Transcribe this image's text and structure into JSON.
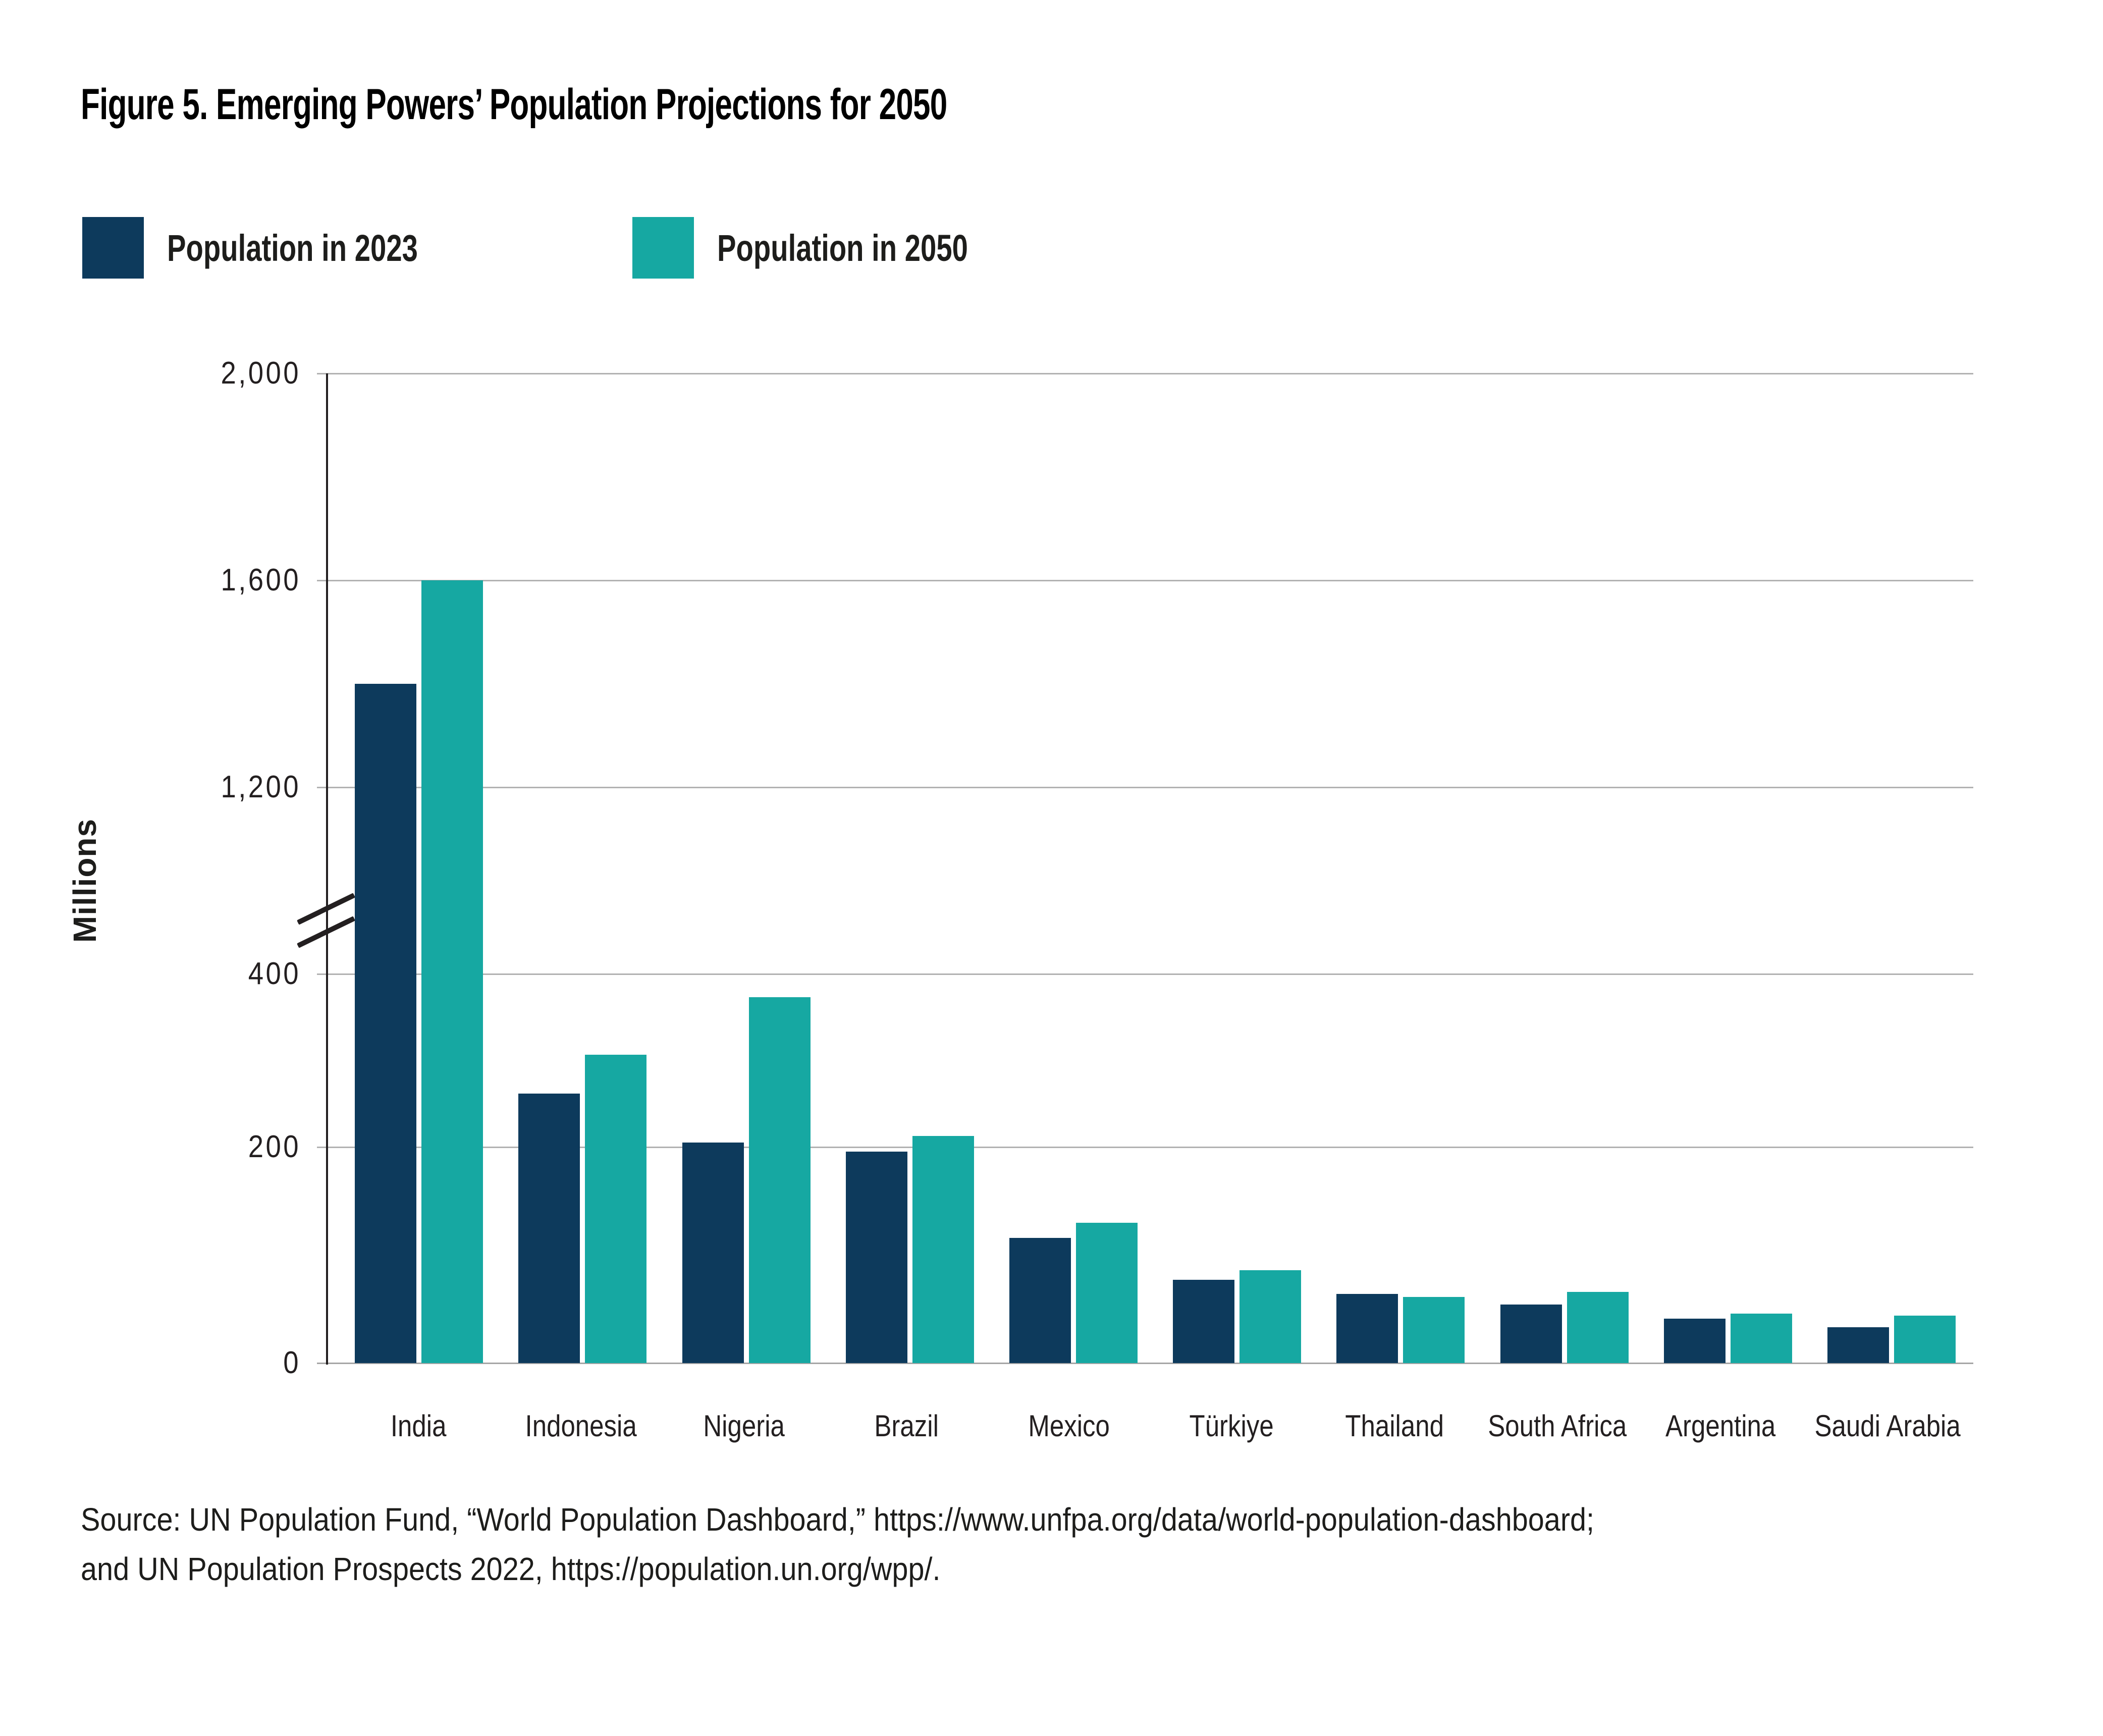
{
  "title": "Figure 5. Emerging Powers’ Population Projections for 2050",
  "legend": {
    "items": [
      {
        "label": "Population in 2023",
        "color": "#0d3a5c"
      },
      {
        "label": "Population in 2050",
        "color": "#16a8a2"
      }
    ]
  },
  "y_axis": {
    "label": "Millions",
    "has_break": true,
    "break_between": [
      400,
      1200
    ]
  },
  "chart_data": {
    "type": "bar",
    "title": "Figure 5. Emerging Powers’ Population Projections for 2050",
    "xlabel": "",
    "ylabel": "Millions",
    "grid": "horizontal",
    "legend_position": "top-left",
    "axis_break": {
      "lower_range": [
        0,
        400
      ],
      "upper_range": [
        1200,
        2000
      ]
    },
    "y_ticks": [
      {
        "value": 0,
        "label": "0"
      },
      {
        "value": 200,
        "label": "200"
      },
      {
        "value": 400,
        "label": "400"
      },
      {
        "value": 1200,
        "label": "1,200"
      },
      {
        "value": 1600,
        "label": "1,600"
      },
      {
        "value": 2000,
        "label": "2,000"
      }
    ],
    "categories": [
      "India",
      "Indonesia",
      "Nigeria",
      "Brazil",
      "Mexico",
      "Türkiye",
      "Thailand",
      "South Africa",
      "Argentina",
      "Saudi Arabia"
    ],
    "series": [
      {
        "name": "Population in 2023",
        "color": "#0d3a5c",
        "values": [
          1400,
          262,
          205,
          196,
          116,
          77,
          64,
          54,
          41,
          33
        ]
      },
      {
        "name": "Population in 2050",
        "color": "#16a8a2",
        "values": [
          1600,
          307,
          373,
          213,
          130,
          86,
          61,
          66,
          46,
          44
        ]
      }
    ]
  },
  "source": {
    "line1": "Source: UN Population Fund, “World Population Dashboard,” https://www.unfpa.org/data/world-population-dashboard;",
    "line2": "and UN Population Prospects 2022, https://population.un.org/wpp/."
  }
}
